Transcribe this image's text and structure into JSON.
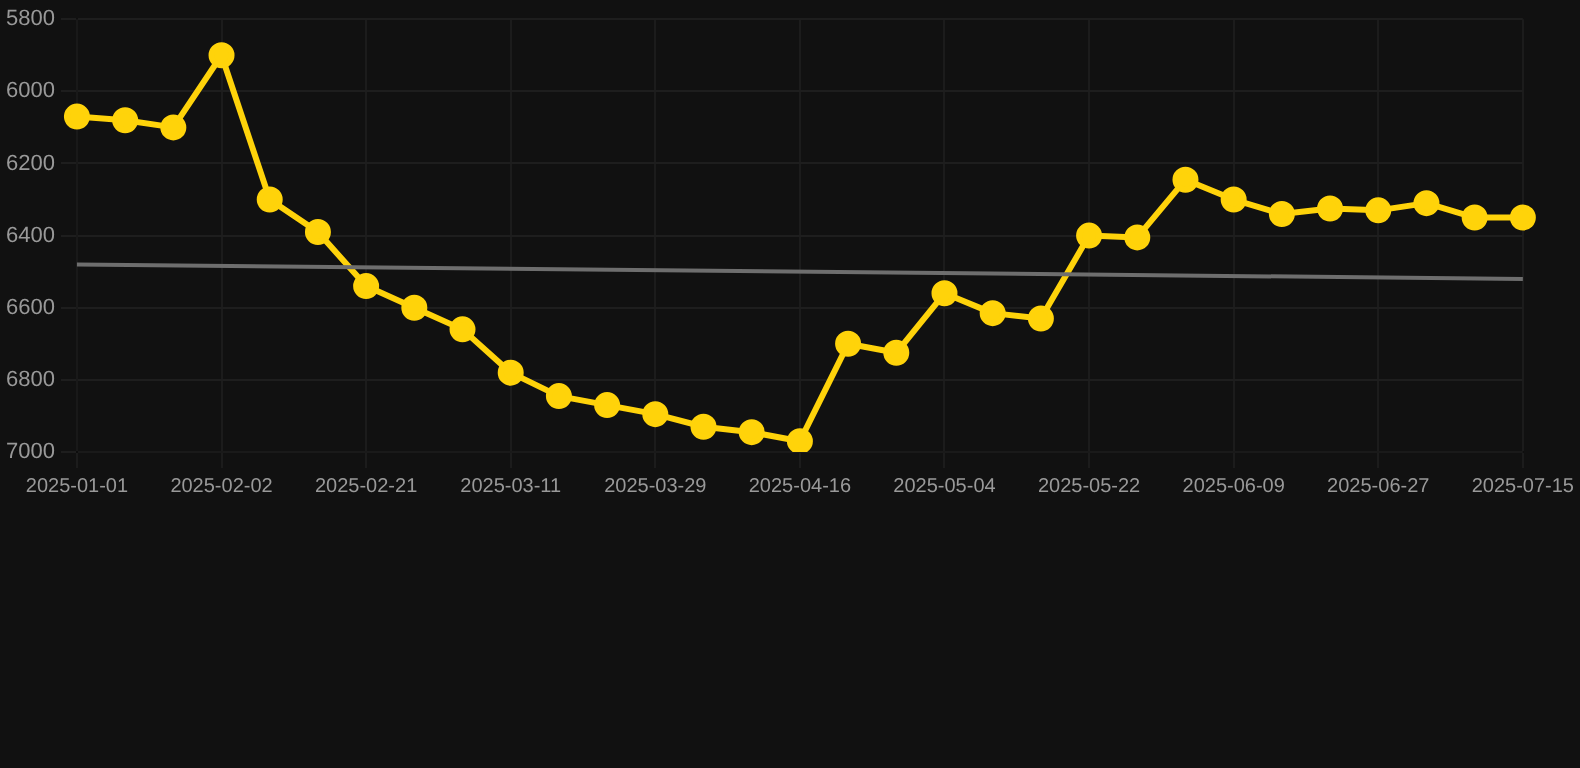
{
  "chart_data": {
    "type": "line",
    "categories": [
      "2025-01-01",
      null,
      null,
      "2025-02-02",
      null,
      null,
      "2025-02-21",
      null,
      null,
      "2025-03-11",
      null,
      null,
      "2025-03-29",
      null,
      null,
      "2025-04-16",
      null,
      null,
      "2025-05-04",
      null,
      null,
      "2025-05-22",
      null,
      null,
      "2025-06-09",
      null,
      null,
      "2025-06-27",
      null,
      null,
      "2025-07-15"
    ],
    "series": [
      {
        "color": "#ffd30a",
        "marker": "circle",
        "values": [
          6070,
          6080,
          6100,
          5900,
          6300,
          6390,
          6540,
          6600,
          6660,
          6780,
          6845,
          6870,
          6895,
          6930,
          6945,
          6970,
          6700,
          6725,
          6560,
          6615,
          6630,
          6400,
          6405,
          6245,
          6300,
          6340,
          6325,
          6330,
          6310,
          6350,
          6350
        ]
      },
      {
        "type": "line",
        "color": "#6e6e6e",
        "marker": "none",
        "values": [
          6480,
          null,
          null,
          null,
          null,
          null,
          null,
          null,
          null,
          null,
          null,
          null,
          null,
          null,
          null,
          null,
          null,
          null,
          null,
          null,
          null,
          null,
          null,
          null,
          null,
          null,
          null,
          null,
          null,
          null,
          6520
        ]
      }
    ],
    "ylim": [
      7000,
      5800
    ],
    "yticks": [
      5800,
      6000,
      6200,
      6400,
      6600,
      6800,
      7000
    ],
    "grid": true,
    "legend": false
  }
}
